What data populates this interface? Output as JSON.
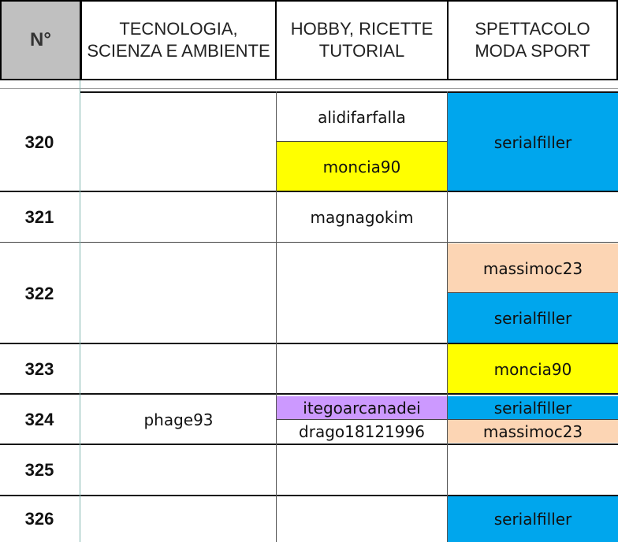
{
  "header": {
    "num": "N°",
    "col1": [
      "TECNOLOGIA,",
      "SCIENZA E AMBIENTE"
    ],
    "col2": [
      "HOBBY, RICETTE",
      "TUTORIAL"
    ],
    "col3": [
      "SPETTACOLO",
      "MODA SPORT"
    ]
  },
  "colors": {
    "blue": "#00a6ed",
    "yellow": "#ffff00",
    "peach": "#fcd5b4",
    "purple": "#cc99ff"
  },
  "rows": [
    {
      "num": "320",
      "col1": "",
      "col2": [
        "alidifarfalla",
        "moncia90"
      ],
      "col3": [
        "serialfiller"
      ]
    },
    {
      "num": "321",
      "col1": "",
      "col2": [
        "magnagokim"
      ],
      "col3": []
    },
    {
      "num": "322",
      "col1": "",
      "col2": [],
      "col3": [
        "massimoc23",
        "serialfiller"
      ]
    },
    {
      "num": "323",
      "col1": "",
      "col2": [],
      "col3": [
        "moncia90"
      ]
    },
    {
      "num": "324",
      "col1": "phage93",
      "col2": [
        "itegoarcanadei",
        "drago18121996"
      ],
      "col3": [
        "serialfiller",
        "massimoc23"
      ]
    },
    {
      "num": "325",
      "col1": "",
      "col2": [],
      "col3": []
    },
    {
      "num": "326",
      "col1": "",
      "col2": [],
      "col3": [
        "serialfiller"
      ]
    }
  ]
}
